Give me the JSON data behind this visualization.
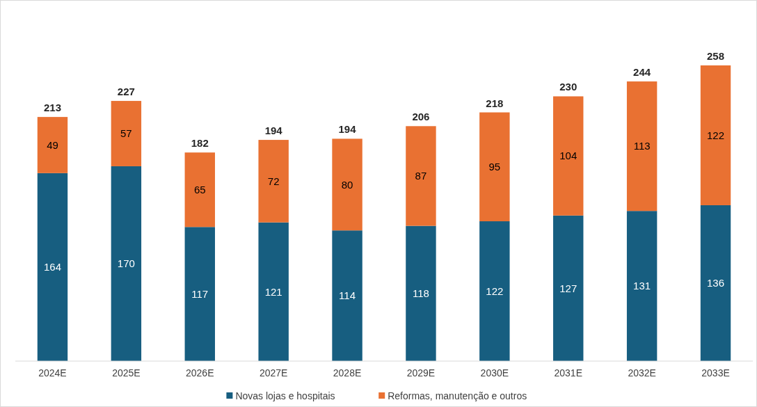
{
  "chart_data": {
    "type": "bar",
    "stacked": true,
    "data_labels": true,
    "legend": "bottom",
    "categories": [
      "2024E",
      "2025E",
      "2026E",
      "2027E",
      "2028E",
      "2029E",
      "2030E",
      "2031E",
      "2032E",
      "2033E"
    ],
    "series": [
      {
        "name": "Novas lojas e hospitais",
        "color": "#175e80",
        "values": [
          164,
          170,
          117,
          121,
          114,
          118,
          122,
          127,
          131,
          136
        ]
      },
      {
        "name": "Reformas, manutenção e outros",
        "color": "#e97132",
        "values": [
          49,
          57,
          65,
          72,
          80,
          87,
          95,
          104,
          113,
          122
        ]
      }
    ],
    "totals": [
      "213",
      "227",
      "182",
      "194",
      "194",
      "206",
      "218",
      "230",
      "244",
      "258"
    ]
  }
}
